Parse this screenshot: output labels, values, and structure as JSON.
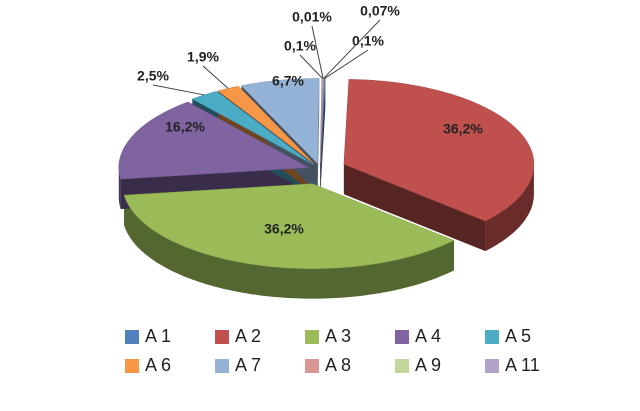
{
  "chart_data": {
    "type": "pie",
    "categories": [
      "A 1",
      "A 2",
      "A 3",
      "A 4",
      "A 5",
      "A 6",
      "A 7",
      "A 8",
      "A 9",
      "A 11"
    ],
    "values": [
      0.1,
      36.2,
      36.2,
      16.2,
      2.5,
      1.9,
      6.7,
      0.1,
      0.01,
      0.07
    ],
    "value_labels": [
      "0,1%",
      "36,2%",
      "36,2%",
      "16,2%",
      "2,5%",
      "1,9%",
      "6,7%",
      "0,1%",
      "0,01%",
      "0,07%"
    ],
    "colors": [
      "#4f81bd",
      "#c0504d",
      "#9bbb59",
      "#8064a2",
      "#4bacc6",
      "#f79646",
      "#95b3d7",
      "#d99694",
      "#c3d69b",
      "#b3a2c7"
    ],
    "legend": "bottom"
  }
}
